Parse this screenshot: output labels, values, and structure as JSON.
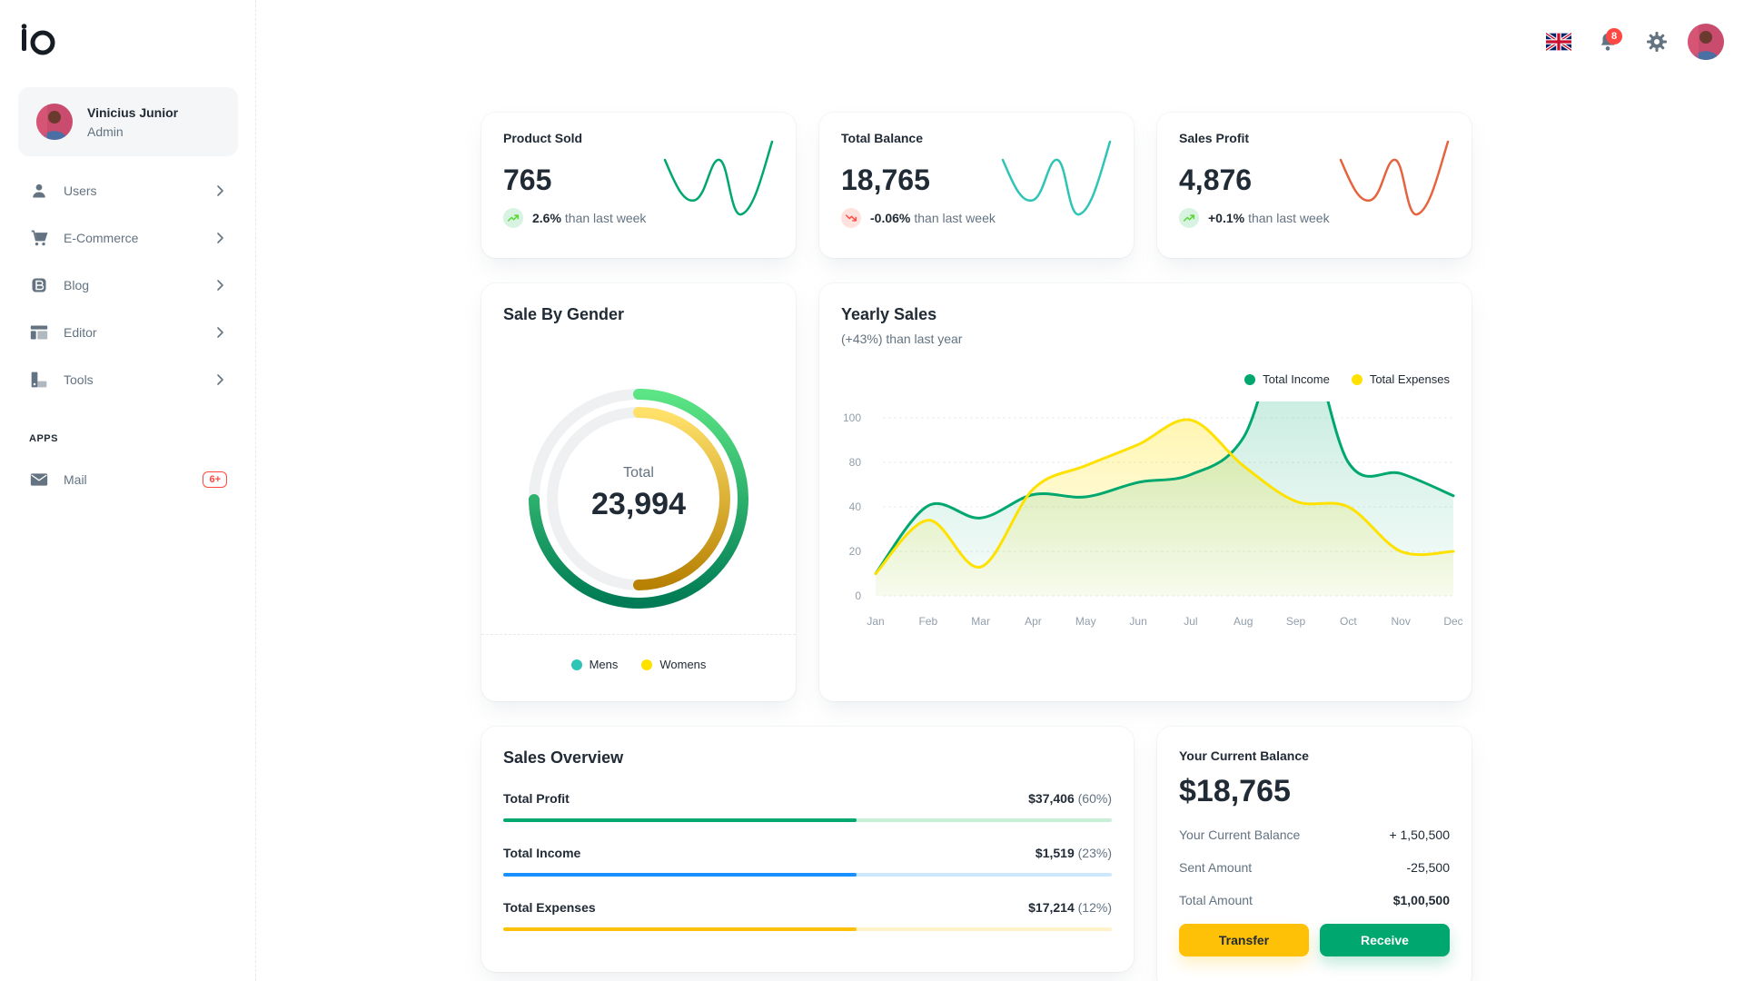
{
  "brand": {
    "logo_text": "io"
  },
  "account": {
    "name": "Vinicius Junior",
    "role": "Admin"
  },
  "nav": {
    "items": [
      {
        "label": "Users",
        "icon": "user-icon"
      },
      {
        "label": "E-Commerce",
        "icon": "cart-icon"
      },
      {
        "label": "Blog",
        "icon": "blog-icon"
      },
      {
        "label": "Editor",
        "icon": "editor-icon"
      },
      {
        "label": "Tools",
        "icon": "tools-icon"
      }
    ],
    "apps_header": "APPS",
    "mail": {
      "label": "Mail",
      "badge": "6+",
      "icon": "mail-icon"
    }
  },
  "header": {
    "language_icon": "uk-flag-icon",
    "notifications_count": "8",
    "settings_icon": "gear-icon",
    "profile_icon": "avatar"
  },
  "stats": [
    {
      "title": "Product Sold",
      "value": "765",
      "pct": "2.6%",
      "note": "than last week",
      "trend": "up",
      "color": "#00a76f",
      "trend_bg": "#d8f3e1",
      "trend_color": "#54d62c"
    },
    {
      "title": "Total Balance",
      "value": "18,765",
      "pct": "-0.06%",
      "note": "than last week",
      "trend": "down",
      "color": "#2ec4b6",
      "trend_bg": "#ffe1dd",
      "trend_color": "#ff4842"
    },
    {
      "title": "Sales Profit",
      "value": "4,876",
      "pct": "+0.1%",
      "note": "than last week",
      "trend": "up",
      "color": "#e4643f",
      "trend_bg": "#d8f3e1",
      "trend_color": "#54d62c"
    }
  ],
  "gender": {
    "title": "Sale By Gender",
    "total_label": "Total",
    "total_value": "23,994",
    "legend": [
      {
        "name": "Mens",
        "color": "#2ec4b6"
      },
      {
        "name": "Womens",
        "color": "#ffe100"
      }
    ]
  },
  "yearly": {
    "title": "Yearly Sales",
    "subtitle": "(+43%) than last year"
  },
  "chart_data": {
    "type": "area",
    "categories": [
      "Jan",
      "Feb",
      "Mar",
      "Apr",
      "May",
      "Jun",
      "Jul",
      "Aug",
      "Sep",
      "Oct",
      "Nov",
      "Dec"
    ],
    "y_ticks": [
      "0",
      "20",
      "40",
      "80",
      "100"
    ],
    "series": [
      {
        "name": "Total Income",
        "color": "#00a76f",
        "values": [
          10,
          41,
          35,
          51,
          49,
          62,
          69,
          91,
          148,
          80,
          70,
          50
        ]
      },
      {
        "name": "Total Expenses",
        "color": "#ffe100",
        "values": [
          10,
          34,
          13,
          56,
          77,
          88,
          99,
          77,
          45,
          40,
          20,
          20
        ]
      }
    ],
    "legend_position": "top-right",
    "grid": true
  },
  "overview": {
    "title": "Sales Overview",
    "rows": [
      {
        "label": "Total Profit",
        "amount": "$37,406",
        "pct_text": "(60%)",
        "progress": 0.58,
        "fill": "#00a76f",
        "track": "#c8f0d6"
      },
      {
        "label": "Total Income",
        "amount": "$1,519",
        "pct_text": "(23%)",
        "progress": 0.58,
        "fill": "#1890ff",
        "track": "#cde7ff"
      },
      {
        "label": "Total Expenses",
        "amount": "$17,214",
        "pct_text": "(12%)",
        "progress": 0.58,
        "fill": "#ffc107",
        "track": "#fff2c8"
      }
    ]
  },
  "balance": {
    "title": "Your Current Balance",
    "amount": "$18,765",
    "rows": [
      {
        "key": "Your Current Balance",
        "value": "+ 1,50,500"
      },
      {
        "key": "Sent Amount",
        "value": "-25,500"
      },
      {
        "key": "Total Amount",
        "value": "$1,00,500"
      }
    ],
    "transfer_label": "Transfer",
    "receive_label": "Receive"
  }
}
